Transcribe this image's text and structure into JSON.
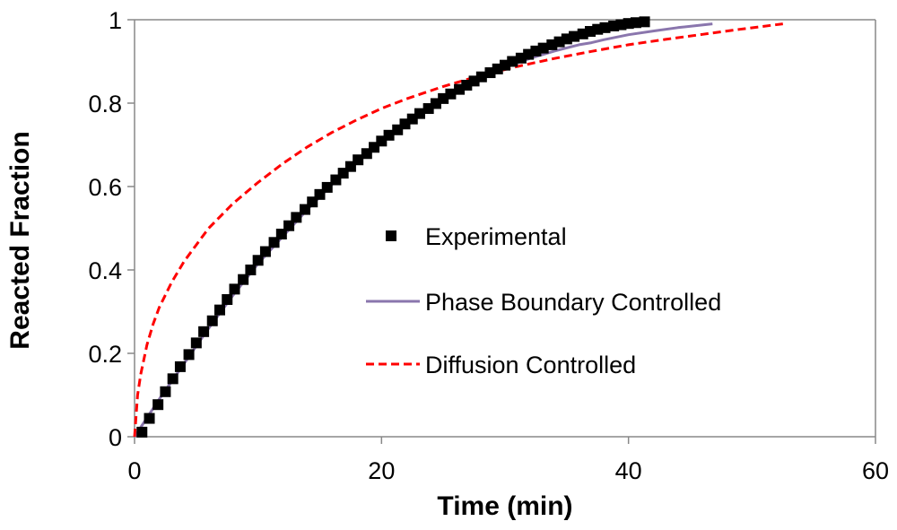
{
  "chart_data": {
    "type": "line",
    "title": "",
    "xlabel": "Time (min)",
    "ylabel": "Reacted Fraction",
    "xlim": [
      0,
      60
    ],
    "ylim": [
      0,
      1
    ],
    "xticks": [
      0,
      20,
      40,
      60
    ],
    "yticks": [
      0,
      0.2,
      0.4,
      0.6,
      0.8,
      1
    ],
    "xtick_labels": [
      "0",
      "20",
      "40",
      "60"
    ],
    "ytick_labels": [
      "0",
      "0.2",
      "0.4",
      "0.6",
      "0.8",
      "1"
    ],
    "grid": false,
    "legend_position": "center-right",
    "series": [
      {
        "name": "Experimental",
        "style": "square-markers",
        "color": "#000000",
        "x": [
          0.6,
          1.2,
          1.9,
          2.5,
          3.1,
          3.7,
          4.4,
          5.0,
          5.6,
          6.3,
          6.9,
          7.5,
          8.1,
          8.8,
          9.4,
          10.0,
          10.6,
          11.3,
          11.9,
          12.5,
          13.1,
          13.8,
          14.4,
          15.0,
          15.6,
          16.3,
          16.9,
          17.5,
          18.1,
          18.8,
          19.4,
          20.0,
          20.6,
          21.3,
          21.9,
          22.5,
          23.1,
          23.8,
          24.4,
          25.0,
          25.6,
          26.3,
          26.9,
          27.5,
          28.1,
          28.8,
          29.4,
          30.0,
          30.6,
          31.3,
          31.9,
          32.5,
          33.1,
          33.8,
          34.4,
          35.0,
          35.6,
          36.3,
          36.9,
          37.5,
          38.1,
          38.8,
          39.4,
          40.0,
          40.6,
          41.3
        ],
        "y": [
          0.011,
          0.044,
          0.077,
          0.108,
          0.139,
          0.168,
          0.197,
          0.225,
          0.252,
          0.278,
          0.304,
          0.329,
          0.354,
          0.377,
          0.4,
          0.423,
          0.444,
          0.466,
          0.486,
          0.506,
          0.526,
          0.545,
          0.563,
          0.581,
          0.598,
          0.616,
          0.632,
          0.648,
          0.664,
          0.679,
          0.694,
          0.709,
          0.723,
          0.736,
          0.75,
          0.762,
          0.775,
          0.787,
          0.799,
          0.811,
          0.822,
          0.833,
          0.843,
          0.853,
          0.863,
          0.873,
          0.882,
          0.891,
          0.9,
          0.908,
          0.917,
          0.925,
          0.932,
          0.94,
          0.947,
          0.954,
          0.96,
          0.966,
          0.972,
          0.977,
          0.981,
          0.985,
          0.988,
          0.991,
          0.993,
          0.995
        ]
      },
      {
        "name": "Phase Boundary Controlled",
        "style": "solid",
        "color": "#8a76ad",
        "x": [
          0,
          2,
          4,
          6,
          8,
          10,
          12,
          14,
          16,
          18,
          20,
          22,
          24,
          26,
          28,
          30,
          32,
          34,
          36,
          37,
          38,
          40,
          42,
          44,
          46.8
        ],
        "y": [
          0,
          0.09,
          0.175,
          0.26,
          0.34,
          0.415,
          0.48,
          0.545,
          0.605,
          0.66,
          0.71,
          0.755,
          0.795,
          0.83,
          0.86,
          0.885,
          0.907,
          0.925,
          0.94,
          0.945,
          0.952,
          0.964,
          0.973,
          0.981,
          0.99
        ]
      },
      {
        "name": "Diffusion Controlled",
        "style": "dashed",
        "color": "#ff0000",
        "x": [
          0,
          0.25,
          0.5,
          1,
          1.5,
          2,
          3,
          4,
          5,
          6,
          8,
          10,
          12,
          14,
          16,
          18,
          20,
          22,
          25,
          28,
          31,
          34,
          37,
          40,
          43,
          46,
          49,
          52.5
        ],
        "y": [
          0,
          0.1,
          0.15,
          0.22,
          0.27,
          0.31,
          0.37,
          0.42,
          0.46,
          0.5,
          0.56,
          0.61,
          0.655,
          0.695,
          0.73,
          0.76,
          0.787,
          0.81,
          0.84,
          0.866,
          0.888,
          0.907,
          0.924,
          0.94,
          0.953,
          0.965,
          0.977,
          0.99
        ]
      }
    ]
  }
}
